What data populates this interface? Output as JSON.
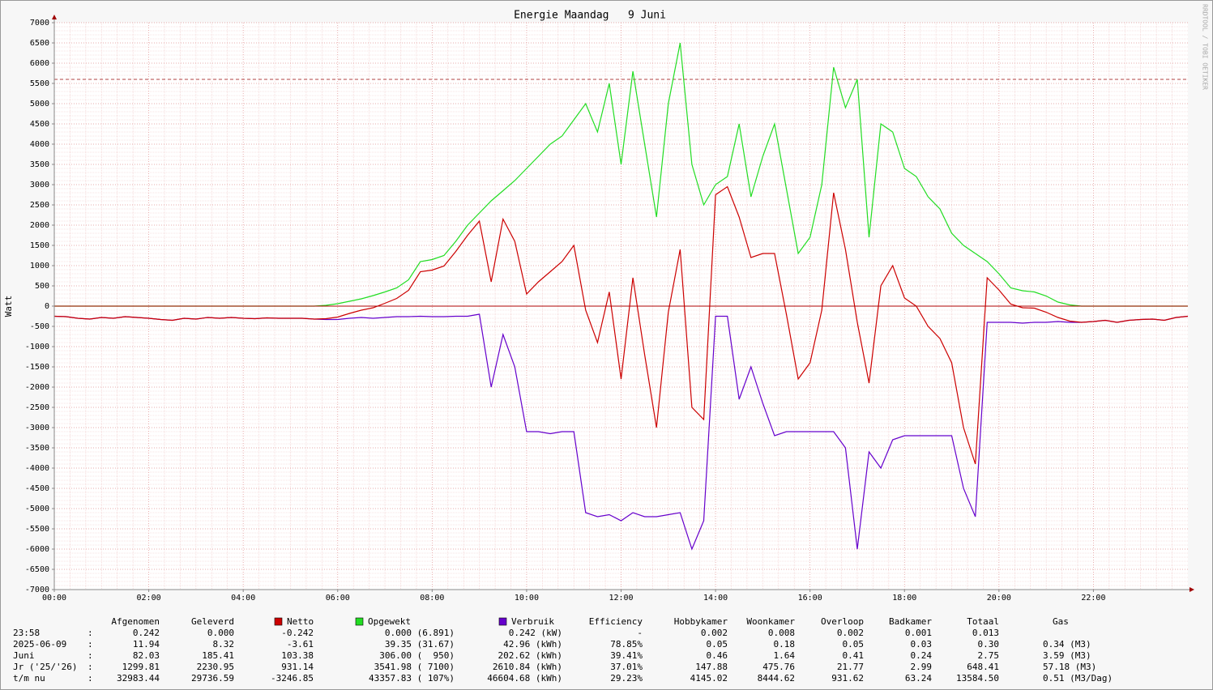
{
  "chart_data": {
    "type": "line",
    "title": "Energie Maandag   9 Juni",
    "y_label": "Watt",
    "watermark": "RRDTOOL / TOBI OETIKER",
    "xlim": [
      0,
      24
    ],
    "ylim": [
      -7000,
      7000
    ],
    "xticks": [
      {
        "value": 0,
        "label": "00:00"
      },
      {
        "value": 2,
        "label": "02:00"
      },
      {
        "value": 4,
        "label": "04:00"
      },
      {
        "value": 6,
        "label": "06:00"
      },
      {
        "value": 8,
        "label": "08:00"
      },
      {
        "value": 10,
        "label": "10:00"
      },
      {
        "value": 12,
        "label": "12:00"
      },
      {
        "value": 14,
        "label": "14:00"
      },
      {
        "value": 16,
        "label": "16:00"
      },
      {
        "value": 18,
        "label": "18:00"
      },
      {
        "value": 20,
        "label": "20:00"
      },
      {
        "value": 22,
        "label": "22:00"
      }
    ],
    "yticks": [
      -7000,
      -6500,
      -6000,
      -5500,
      -5000,
      -4500,
      -4000,
      -3500,
      -3000,
      -2500,
      -2000,
      -1500,
      -1000,
      -500,
      0,
      500,
      1000,
      1500,
      2000,
      2500,
      3000,
      3500,
      4000,
      4500,
      5000,
      5500,
      6000,
      6500,
      7000
    ],
    "grid": true,
    "hrule": 5600,
    "hrule_color": "#b04040",
    "x": [
      0,
      0.25,
      0.5,
      0.75,
      1,
      1.25,
      1.5,
      1.75,
      2,
      2.25,
      2.5,
      2.75,
      3,
      3.25,
      3.5,
      3.75,
      4,
      4.25,
      4.5,
      4.75,
      5,
      5.25,
      5.5,
      5.75,
      6,
      6.25,
      6.5,
      6.75,
      7,
      7.25,
      7.5,
      7.75,
      8,
      8.25,
      8.5,
      8.75,
      9,
      9.25,
      9.5,
      9.75,
      10,
      10.25,
      10.5,
      10.75,
      11,
      11.25,
      11.5,
      11.75,
      12,
      12.25,
      12.5,
      12.75,
      13,
      13.25,
      13.5,
      13.75,
      14,
      14.25,
      14.5,
      14.75,
      15,
      15.25,
      15.5,
      15.75,
      16,
      16.25,
      16.5,
      16.75,
      17,
      17.25,
      17.5,
      17.75,
      18,
      18.25,
      18.5,
      18.75,
      19,
      19.25,
      19.5,
      19.75,
      20,
      20.25,
      20.5,
      20.75,
      21,
      21.25,
      21.5,
      21.75,
      22,
      22.25,
      22.5,
      22.75,
      23,
      23.25,
      23.5,
      23.75,
      24
    ],
    "series": [
      {
        "name": "Netto",
        "color": "#cc0000",
        "values": [
          -250,
          -260,
          -300,
          -320,
          -280,
          -300,
          -260,
          -280,
          -300,
          -330,
          -350,
          -300,
          -320,
          -280,
          -300,
          -280,
          -300,
          -310,
          -290,
          -300,
          -300,
          -300,
          -320,
          -310,
          -270,
          -180,
          -100,
          -40,
          70,
          190,
          390,
          850,
          890,
          990,
          1350,
          1750,
          2100,
          600,
          2150,
          1600,
          300,
          600,
          850,
          1100,
          1500,
          -100,
          -900,
          350,
          -1800,
          700,
          -1200,
          -3000,
          -150,
          1400,
          -2500,
          -2800,
          2750,
          2950,
          2200,
          1200,
          1300,
          1300,
          -200,
          -1800,
          -1400,
          -100,
          2800,
          1400,
          -400,
          -1900,
          500,
          1000,
          200,
          0,
          -500,
          -800,
          -1400,
          -3000,
          -3900,
          700,
          400,
          50,
          -40,
          -50,
          -150,
          -280,
          -370,
          -400,
          -380,
          -350,
          -400,
          -350,
          -330,
          -320,
          -350,
          -280,
          -250
        ]
      },
      {
        "name": "Opgewekt",
        "color": "#22dd22",
        "values": [
          0,
          0,
          0,
          0,
          0,
          0,
          0,
          0,
          0,
          0,
          0,
          0,
          0,
          0,
          0,
          0,
          0,
          0,
          0,
          0,
          0,
          0,
          0,
          20,
          60,
          120,
          180,
          260,
          350,
          450,
          650,
          1100,
          1150,
          1250,
          1600,
          2000,
          2300,
          2600,
          2850,
          3100,
          3400,
          3700,
          4000,
          4200,
          4600,
          5000,
          4300,
          5500,
          3500,
          5800,
          4000,
          2200,
          5000,
          6500,
          3500,
          2500,
          3000,
          3200,
          4500,
          2700,
          3700,
          4500,
          2900,
          1300,
          1700,
          3000,
          5900,
          4900,
          5600,
          1700,
          4500,
          4300,
          3400,
          3200,
          2700,
          2400,
          1800,
          1500,
          1300,
          1100,
          800,
          450,
          380,
          350,
          250,
          100,
          30,
          0,
          0,
          0,
          0,
          0,
          0,
          0,
          0,
          0,
          0
        ]
      },
      {
        "name": "Verbruik",
        "color": "#6600cc",
        "values": [
          -250,
          -260,
          -300,
          -320,
          -280,
          -300,
          -260,
          -280,
          -300,
          -330,
          -350,
          -300,
          -320,
          -280,
          -300,
          -280,
          -300,
          -310,
          -290,
          -300,
          -300,
          -300,
          -320,
          -330,
          -330,
          -300,
          -280,
          -300,
          -280,
          -260,
          -260,
          -250,
          -260,
          -260,
          -250,
          -250,
          -200,
          -2000,
          -700,
          -1500,
          -3100,
          -3100,
          -3150,
          -3100,
          -3100,
          -5100,
          -5200,
          -5150,
          -5300,
          -5100,
          -5200,
          -5200,
          -5150,
          -5100,
          -6000,
          -5300,
          -250,
          -250,
          -2300,
          -1500,
          -2400,
          -3200,
          -3100,
          -3100,
          -3100,
          -3100,
          -3100,
          -3500,
          -6000,
          -3600,
          -4000,
          -3300,
          -3200,
          -3200,
          -3200,
          -3200,
          -3200,
          -4500,
          -5200,
          -400,
          -400,
          -400,
          -420,
          -400,
          -400,
          -380,
          -400,
          -400,
          -380,
          -350,
          -400,
          -350,
          -330,
          -320,
          -350,
          -280,
          -250
        ]
      }
    ]
  },
  "table": {
    "separator": ":",
    "columns_left": [
      "Afgenomen",
      "Geleverd"
    ],
    "columns_right": [
      "Efficiency",
      "Hobbykamer",
      "Woonkamer",
      "Overloop",
      "Badkamer",
      "Totaal",
      "Gas"
    ],
    "rows": [
      {
        "label": "23:58",
        "cells": [
          "0.242",
          "0.000",
          "-0.242",
          "0.000 (6.891)",
          "0.242 (kW)",
          "-",
          "0.002",
          "0.008",
          "0.002",
          "0.001",
          "0.013"
        ]
      },
      {
        "label": "2025-06-09",
        "cells": [
          "11.94",
          "8.32",
          "-3.61",
          "39.35 (31.67)",
          "42.96 (kWh)",
          "78.85%",
          "0.05",
          "0.18",
          "0.05",
          "0.03",
          "0.30",
          "0.34 (M3)"
        ]
      },
      {
        "label": "Juni",
        "cells": [
          "82.03",
          "185.41",
          "103.38",
          "306.00 (  950)",
          "202.62 (kWh)",
          "39.41%",
          "0.46",
          "1.64",
          "0.41",
          "0.24",
          "2.75",
          "3.59 (M3)"
        ]
      },
      {
        "label": "Jr ('25/'26)",
        "cells": [
          "1299.81",
          "2230.95",
          "931.14",
          "3541.98 ( 7100)",
          "2610.84 (kWh)",
          "37.01%",
          "147.88",
          "475.76",
          "21.77",
          "2.99",
          "648.41",
          "57.18 (M3)"
        ]
      },
      {
        "label": "t/m nu",
        "cells": [
          "32983.44",
          "29736.59",
          "-3246.85",
          "43357.83 ( 107%)",
          "46604.68 (kWh)",
          "29.23%",
          "4145.02",
          "8444.62",
          "931.62",
          "63.24",
          "13584.50",
          "0.51 (M3/Dag)"
        ]
      }
    ]
  }
}
